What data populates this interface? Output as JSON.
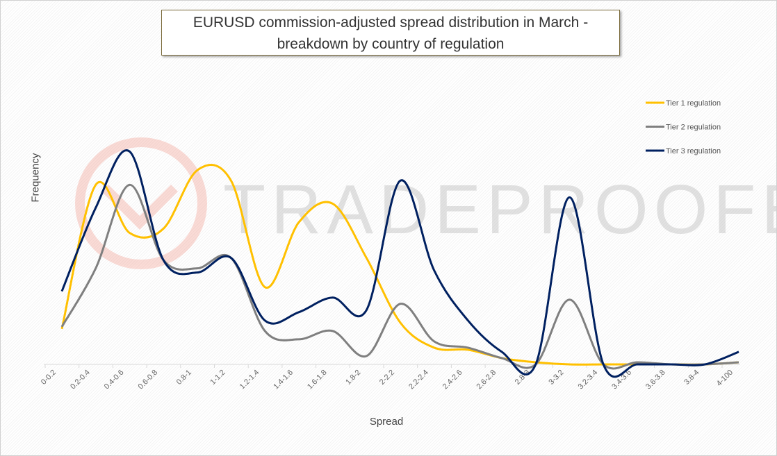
{
  "watermark": "TRADEPROOFER",
  "chart_data": {
    "type": "line",
    "title": "EURUSD commission-adjusted spread distribution in March - breakdown by country of regulation",
    "xlabel": "Spread",
    "ylabel": "Frequency",
    "ylim": [
      0,
      110
    ],
    "grid": false,
    "legend": "right",
    "categories": [
      "0-0.2",
      "0.2-0.4",
      "0.4-0.6",
      "0.6-0.8",
      "0.8-1",
      "1-1.2",
      "1.2-1.4",
      "1.4-1.6",
      "1.6-1.8",
      "1.8-2",
      "2-2.2",
      "2.2-2.4",
      "2.4-2.6",
      "2.6-2.8",
      "2.8-3",
      "3-3.2",
      "3.2-3.4",
      "3.4-3.6",
      "3.6-3.8",
      "3.8-4",
      "4-100"
    ],
    "series": [
      {
        "name": "Tier 1 regulation",
        "color": "#ffc000",
        "values": [
          17,
          86,
          63,
          65,
          93,
          88,
          37,
          68,
          77,
          51,
          20,
          8,
          7,
          3,
          1,
          0,
          0,
          0,
          0,
          0,
          1
        ]
      },
      {
        "name": "Tier 2 regulation",
        "color": "#7f7f7f",
        "values": [
          18,
          46,
          86,
          50,
          46,
          51,
          16,
          12,
          16,
          4,
          29,
          11,
          8,
          3,
          0,
          31,
          0,
          1,
          0,
          0,
          1
        ]
      },
      {
        "name": "Tier 3 regulation",
        "color": "#002060",
        "values": [
          35,
          75,
          102,
          50,
          44,
          51,
          21,
          25,
          32,
          26,
          88,
          45,
          21,
          6,
          0,
          80,
          0,
          0,
          0,
          0,
          6
        ]
      }
    ]
  }
}
